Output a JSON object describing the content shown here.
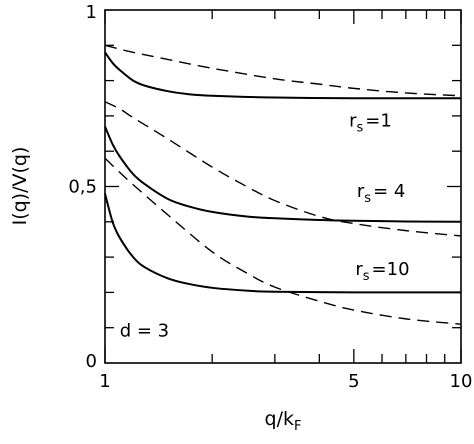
{
  "chart_data": {
    "type": "line",
    "xlabel_main": "q/k",
    "xlabel_sub": "F",
    "ylabel": "I(q)/V(q)",
    "x_scale": "log",
    "xlim": [
      1,
      10
    ],
    "ylim": [
      0,
      1
    ],
    "x_ticks": [
      {
        "value": 1,
        "label": "1"
      },
      {
        "value": 5,
        "label": "5"
      },
      {
        "value": 10,
        "label": "10"
      }
    ],
    "y_ticks": [
      {
        "value": 0,
        "label": "0"
      },
      {
        "value": 0.5,
        "label": "0,5"
      },
      {
        "value": 1,
        "label": "1"
      }
    ],
    "series": [
      {
        "group": "rs1",
        "style": "solid",
        "x": [
          1.0,
          1.05,
          1.1,
          1.2,
          1.3,
          1.5,
          1.7,
          2.0,
          3.0,
          5.0,
          7.0,
          10.0
        ],
        "y": [
          0.88,
          0.85,
          0.83,
          0.8,
          0.785,
          0.77,
          0.762,
          0.757,
          0.752,
          0.75,
          0.75,
          0.75
        ]
      },
      {
        "group": "rs1",
        "style": "dashed",
        "x": [
          1.0,
          1.2,
          1.5,
          2.0,
          3.0,
          4.0,
          5.0,
          7.0,
          10.0
        ],
        "y": [
          0.9,
          0.88,
          0.86,
          0.835,
          0.805,
          0.79,
          0.778,
          0.765,
          0.757
        ]
      },
      {
        "group": "rs4",
        "style": "solid",
        "x": [
          1.0,
          1.05,
          1.1,
          1.2,
          1.3,
          1.5,
          1.7,
          2.0,
          2.5,
          3.0,
          4.0,
          5.0,
          7.0,
          10.0
        ],
        "y": [
          0.67,
          0.62,
          0.585,
          0.535,
          0.505,
          0.465,
          0.445,
          0.428,
          0.415,
          0.41,
          0.405,
          0.403,
          0.401,
          0.4
        ]
      },
      {
        "group": "rs4",
        "style": "dashed",
        "x": [
          1.0,
          1.1,
          1.2,
          1.5,
          2.0,
          2.5,
          3.0,
          4.0,
          5.0,
          7.0,
          10.0
        ],
        "y": [
          0.74,
          0.72,
          0.695,
          0.635,
          0.555,
          0.5,
          0.46,
          0.415,
          0.395,
          0.375,
          0.36
        ]
      },
      {
        "group": "rs10",
        "style": "solid",
        "x": [
          1.0,
          1.05,
          1.1,
          1.2,
          1.3,
          1.5,
          1.7,
          2.0,
          2.5,
          3.0,
          5.0,
          7.0,
          10.0
        ],
        "y": [
          0.48,
          0.4,
          0.355,
          0.3,
          0.27,
          0.24,
          0.225,
          0.213,
          0.205,
          0.202,
          0.2,
          0.2,
          0.2
        ]
      },
      {
        "group": "rs10",
        "style": "dashed",
        "x": [
          1.0,
          1.1,
          1.2,
          1.5,
          2.0,
          2.5,
          3.0,
          4.0,
          5.0,
          7.0,
          10.0
        ],
        "y": [
          0.58,
          0.54,
          0.505,
          0.42,
          0.315,
          0.255,
          0.215,
          0.175,
          0.15,
          0.125,
          0.11
        ]
      }
    ],
    "annotations": [
      {
        "group": "rs1",
        "main": "r",
        "sub": "s",
        "tail": "=1",
        "x": 4.85,
        "y": 0.67
      },
      {
        "group": "rs4",
        "main": "r",
        "sub": "s",
        "tail": "= 4",
        "x": 5.1,
        "y": 0.47
      },
      {
        "group": "rs10",
        "main": "r",
        "sub": "s",
        "tail": "=10",
        "x": 5.05,
        "y": 0.25
      },
      {
        "group": "d",
        "text": "d = 3",
        "x": 1.1,
        "y": 0.075
      }
    ],
    "grid": false,
    "legend": "none"
  }
}
